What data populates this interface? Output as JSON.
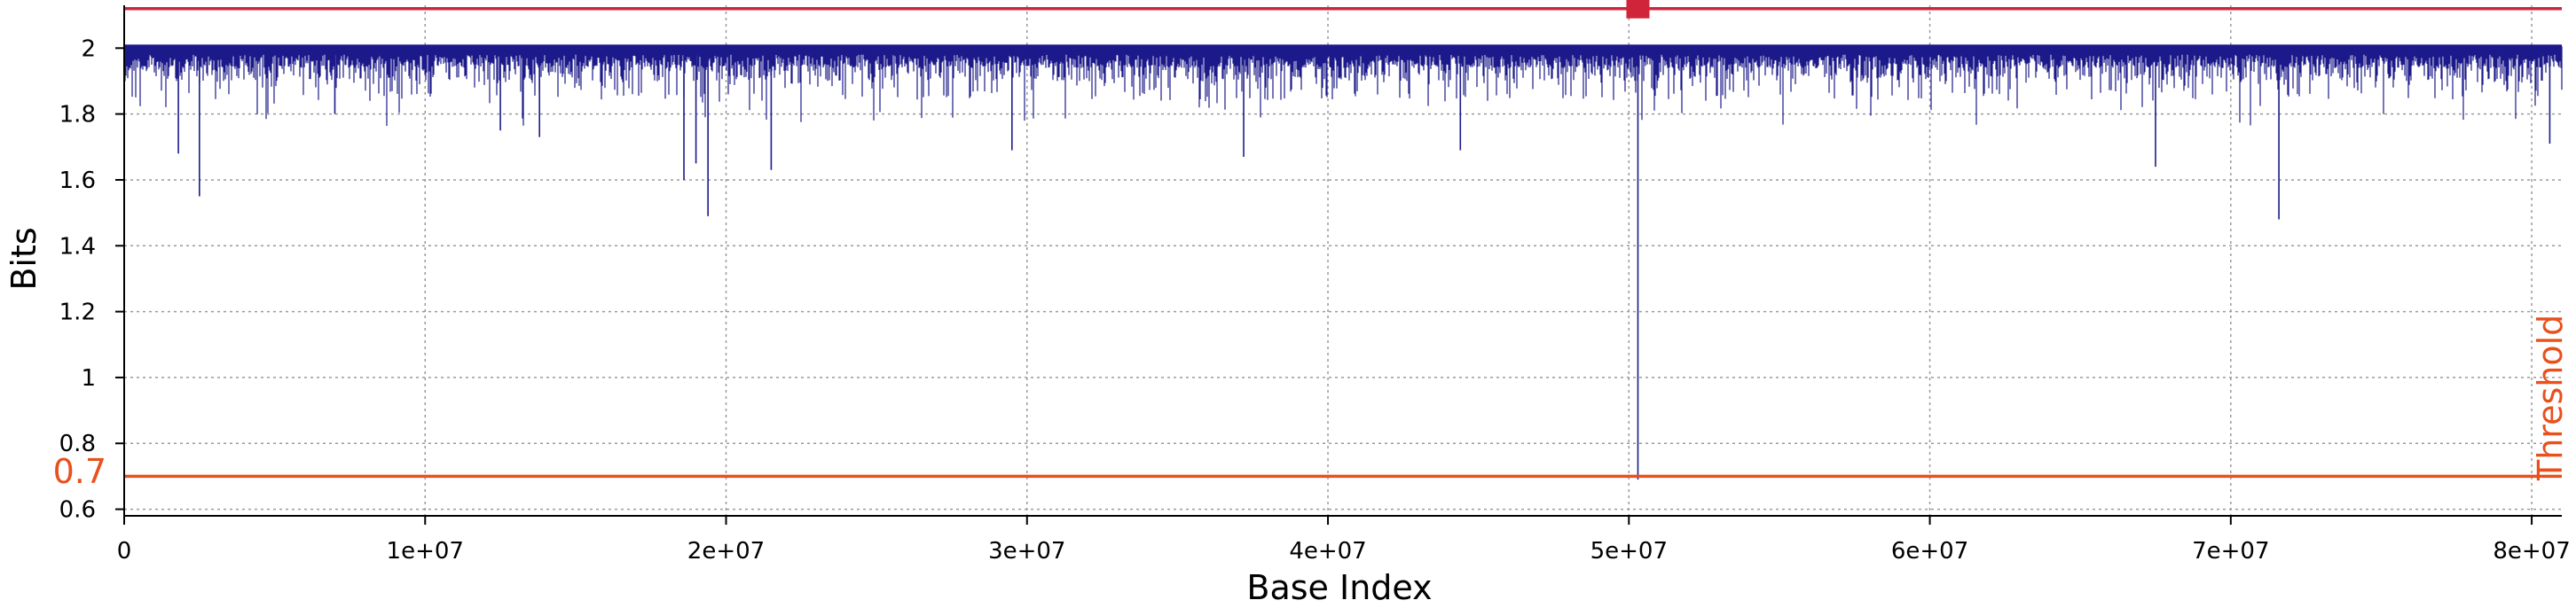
{
  "chart_data": {
    "type": "line",
    "title": "",
    "xlabel": "Base Index",
    "ylabel": "Bits",
    "xlim": [
      0,
      81000000
    ],
    "ylim": [
      0.58,
      2.13
    ],
    "x_ticks": [
      0,
      10000000,
      20000000,
      30000000,
      40000000,
      50000000,
      60000000,
      70000000,
      80000000
    ],
    "x_tick_labels": [
      "0",
      "1e+07",
      "2e+07",
      "3e+07",
      "4e+07",
      "5e+07",
      "6e+07",
      "7e+07",
      "8e+07"
    ],
    "y_ticks": [
      0.6,
      0.8,
      1,
      1.2,
      1.4,
      1.6,
      1.8,
      2
    ],
    "y_tick_labels": [
      "0.6",
      "0.8",
      "1",
      "1.2",
      "1.4",
      "1.6",
      "1.8",
      "2"
    ],
    "grid": true,
    "series": [
      {
        "color": "#1c1a8a",
        "baseline": 2.0,
        "dips": [
          {
            "x": 1800000,
            "y": 1.68
          },
          {
            "x": 2500000,
            "y": 1.55
          },
          {
            "x": 7000000,
            "y": 1.8
          },
          {
            "x": 12500000,
            "y": 1.75
          },
          {
            "x": 13800000,
            "y": 1.73
          },
          {
            "x": 18600000,
            "y": 1.6
          },
          {
            "x": 19000000,
            "y": 1.65
          },
          {
            "x": 19400000,
            "y": 1.49
          },
          {
            "x": 21500000,
            "y": 1.63
          },
          {
            "x": 29500000,
            "y": 1.69
          },
          {
            "x": 37200000,
            "y": 1.67
          },
          {
            "x": 44400000,
            "y": 1.69
          },
          {
            "x": 50300000,
            "y": 0.69
          },
          {
            "x": 67500000,
            "y": 1.64
          },
          {
            "x": 71600000,
            "y": 1.48
          },
          {
            "x": 80600000,
            "y": 1.71
          }
        ]
      }
    ],
    "reference_lines": [
      {
        "y": 2.12,
        "color": "#d0243a",
        "marker": {
          "x": 50300000
        }
      },
      {
        "y": 0.7,
        "color": "#e8501c",
        "label": "Threshold",
        "value_label": "0.7"
      }
    ]
  }
}
